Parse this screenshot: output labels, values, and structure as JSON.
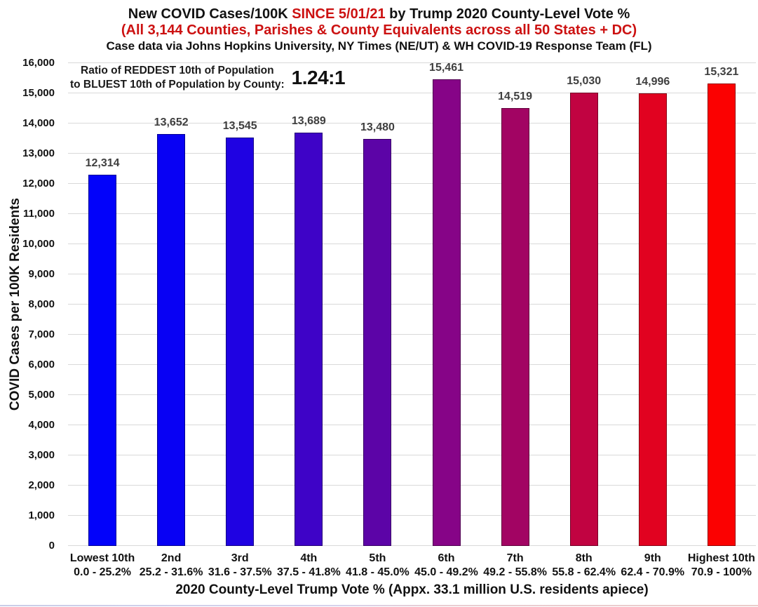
{
  "header": {
    "title_part1": "New COVID Cases/100K ",
    "title_highlight": "SINCE 5/01/21",
    "title_part2": " by Trump 2020 County-Level Vote %",
    "subtitle": "(All 3,144 Counties, Parishes & County Equivalents across all 50 States + DC)",
    "source_line": "Case data via Johns Hopkins University, NY Times (NE/UT) & WH COVID-19 Response Team (FL)",
    "highlight_color": "#cc1111"
  },
  "annotation": {
    "line1": "Ratio of REDDEST 10th of Population",
    "line2": "to BLUEST 10th of Population by County:",
    "ratio": "1.24:1"
  },
  "chart_data": {
    "type": "bar",
    "title": "New COVID Cases/100K SINCE 5/01/21 by Trump 2020 County-Level Vote %",
    "categories": [
      "Lowest 10th",
      "2nd",
      "3rd",
      "4th",
      "5th",
      "6th",
      "7th",
      "8th",
      "9th",
      "Highest 10th"
    ],
    "ranges": [
      "0.0 - 25.2%",
      "25.2 - 31.6%",
      "31.6 - 37.5%",
      "37.5 - 41.8%",
      "41.8 - 45.0%",
      "45.0 - 49.2%",
      "49.2 - 55.8%",
      "55.8 - 62.4%",
      "62.4 - 70.9%",
      "70.9 - 100%"
    ],
    "values": [
      12314,
      13652,
      13545,
      13689,
      13480,
      15461,
      14519,
      15030,
      14996,
      15321
    ],
    "value_labels": [
      "12,314",
      "13,652",
      "13,545",
      "13,689",
      "13,480",
      "15,461",
      "14,519",
      "15,030",
      "14,996",
      "15,321"
    ],
    "bar_colors": [
      "#0202fa",
      "#0801f4",
      "#1f02e2",
      "#3e03c7",
      "#5c04a7",
      "#860487",
      "#a20463",
      "#c10341",
      "#e10220",
      "#fb0101"
    ],
    "ylabel": "COVID Cases per 100K Residents",
    "xlabel": "2020 County-Level Trump Vote % (Appx. 33.1 million U.S. residents apiece)",
    "ylim": [
      0,
      16000
    ],
    "ytick_step": 1000,
    "ytick_labels": [
      "0",
      "1,000",
      "2,000",
      "3,000",
      "4,000",
      "5,000",
      "6,000",
      "7,000",
      "8,000",
      "9,000",
      "10,000",
      "11,000",
      "12,000",
      "13,000",
      "14,000",
      "15,000",
      "16,000"
    ],
    "grid": "horizontal",
    "legend": "none",
    "ratio_annotation": "1.24:1"
  }
}
